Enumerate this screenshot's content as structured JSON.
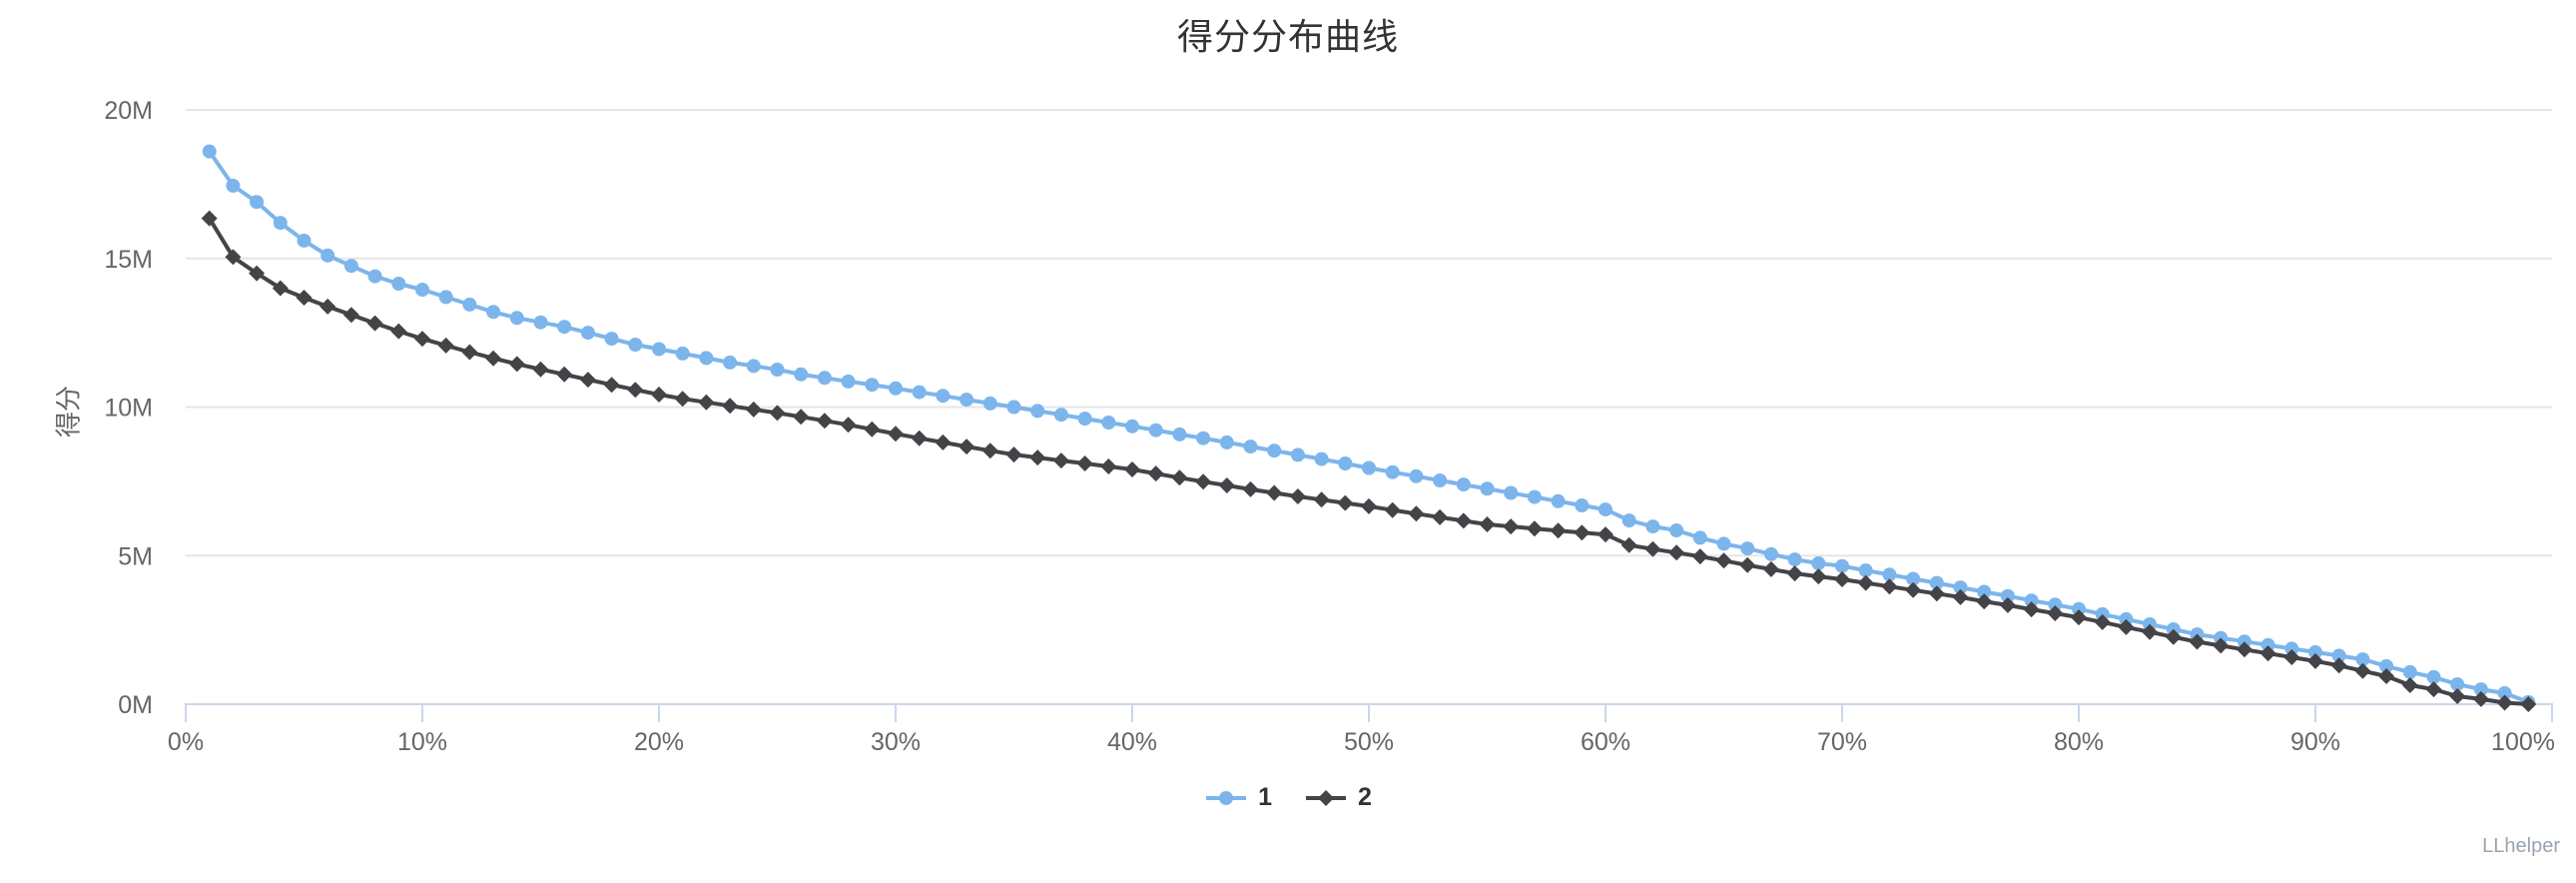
{
  "chart_data": {
    "type": "line",
    "title": "得分分布曲线",
    "xlabel": "",
    "ylabel": "得分",
    "xlim": [
      0,
      100
    ],
    "ylim": [
      0,
      20
    ],
    "x_unit": "%",
    "y_unit": "M",
    "grid": true,
    "legend_position": "bottom-center",
    "x_ticks": [
      "0%",
      "10%",
      "20%",
      "30%",
      "40%",
      "50%",
      "60%",
      "70%",
      "80%",
      "90%",
      "100%"
    ],
    "x_tick_values": [
      0,
      10,
      20,
      30,
      40,
      50,
      60,
      70,
      80,
      90,
      100
    ],
    "y_ticks": [
      "0M",
      "5M",
      "10M",
      "15M",
      "20M"
    ],
    "y_tick_values": [
      0,
      5,
      10,
      15,
      20
    ],
    "x": [
      1,
      2,
      3,
      4,
      5,
      6,
      7,
      8,
      9,
      10,
      11,
      12,
      13,
      14,
      15,
      16,
      17,
      18,
      19,
      20,
      21,
      22,
      23,
      24,
      25,
      26,
      27,
      28,
      29,
      30,
      31,
      32,
      33,
      34,
      35,
      36,
      37,
      38,
      39,
      40,
      41,
      42,
      43,
      44,
      45,
      46,
      47,
      48,
      49,
      50,
      51,
      52,
      53,
      54,
      55,
      56,
      57,
      58,
      59,
      60,
      61,
      62,
      63,
      64,
      65,
      66,
      67,
      68,
      69,
      70,
      71,
      72,
      73,
      74,
      75,
      76,
      77,
      78,
      79,
      80,
      81,
      82,
      83,
      84,
      85,
      86,
      87,
      88,
      89,
      90,
      91,
      92,
      93,
      94,
      95,
      96,
      97,
      98,
      99
    ],
    "series": [
      {
        "name": "1",
        "color": "#7cb5ec",
        "marker": "circle",
        "values": [
          18.6,
          17.45,
          16.9,
          16.2,
          15.6,
          15.1,
          14.75,
          14.4,
          14.15,
          13.95,
          13.7,
          13.45,
          13.2,
          13.0,
          12.85,
          12.7,
          12.5,
          12.3,
          12.1,
          11.95,
          11.8,
          11.65,
          11.5,
          11.38,
          11.26,
          11.1,
          10.98,
          10.86,
          10.75,
          10.63,
          10.5,
          10.38,
          10.25,
          10.12,
          10.0,
          9.87,
          9.74,
          9.61,
          9.48,
          9.35,
          9.22,
          9.08,
          8.95,
          8.81,
          8.67,
          8.53,
          8.39,
          8.25,
          8.1,
          7.95,
          7.81,
          7.67,
          7.53,
          7.39,
          7.25,
          7.11,
          6.97,
          6.83,
          6.69,
          6.55,
          6.18,
          5.98,
          5.85,
          5.6,
          5.4,
          5.24,
          5.05,
          4.87,
          4.74,
          4.65,
          4.5,
          4.36,
          4.22,
          4.08,
          3.93,
          3.78,
          3.64,
          3.49,
          3.35,
          3.2,
          3.03,
          2.86,
          2.69,
          2.52,
          2.35,
          2.23,
          2.11,
          1.99,
          1.87,
          1.75,
          1.63,
          1.51,
          1.28,
          1.08,
          0.91,
          0.67,
          0.5,
          0.37,
          0.07
        ]
      },
      {
        "name": "2",
        "color": "#434348",
        "marker": "diamond",
        "values": [
          16.35,
          15.05,
          14.5,
          14.0,
          13.68,
          13.38,
          13.1,
          12.82,
          12.55,
          12.3,
          12.07,
          11.85,
          11.64,
          11.45,
          11.27,
          11.1,
          10.92,
          10.75,
          10.58,
          10.42,
          10.28,
          10.16,
          10.04,
          9.92,
          9.8,
          9.67,
          9.54,
          9.4,
          9.25,
          9.1,
          8.95,
          8.81,
          8.67,
          8.53,
          8.4,
          8.3,
          8.2,
          8.1,
          8.0,
          7.9,
          7.76,
          7.62,
          7.49,
          7.36,
          7.23,
          7.11,
          6.99,
          6.88,
          6.77,
          6.66,
          6.53,
          6.41,
          6.29,
          6.17,
          6.05,
          5.98,
          5.91,
          5.84,
          5.77,
          5.71,
          5.35,
          5.22,
          5.1,
          4.97,
          4.83,
          4.68,
          4.54,
          4.4,
          4.3,
          4.2,
          4.08,
          3.96,
          3.84,
          3.72,
          3.6,
          3.46,
          3.33,
          3.19,
          3.06,
          2.92,
          2.76,
          2.59,
          2.43,
          2.26,
          2.1,
          1.97,
          1.84,
          1.71,
          1.58,
          1.45,
          1.3,
          1.12,
          0.94,
          0.64,
          0.5,
          0.27,
          0.17,
          0.05,
          0.0
        ]
      }
    ],
    "colors": {
      "grid_line": "#e6e6e6",
      "axis_line": "#ccd6eb",
      "tick_label": "#666666",
      "title_text": "#333333",
      "legend_text": "#333333"
    }
  },
  "credits": {
    "label": "LLhelper"
  }
}
